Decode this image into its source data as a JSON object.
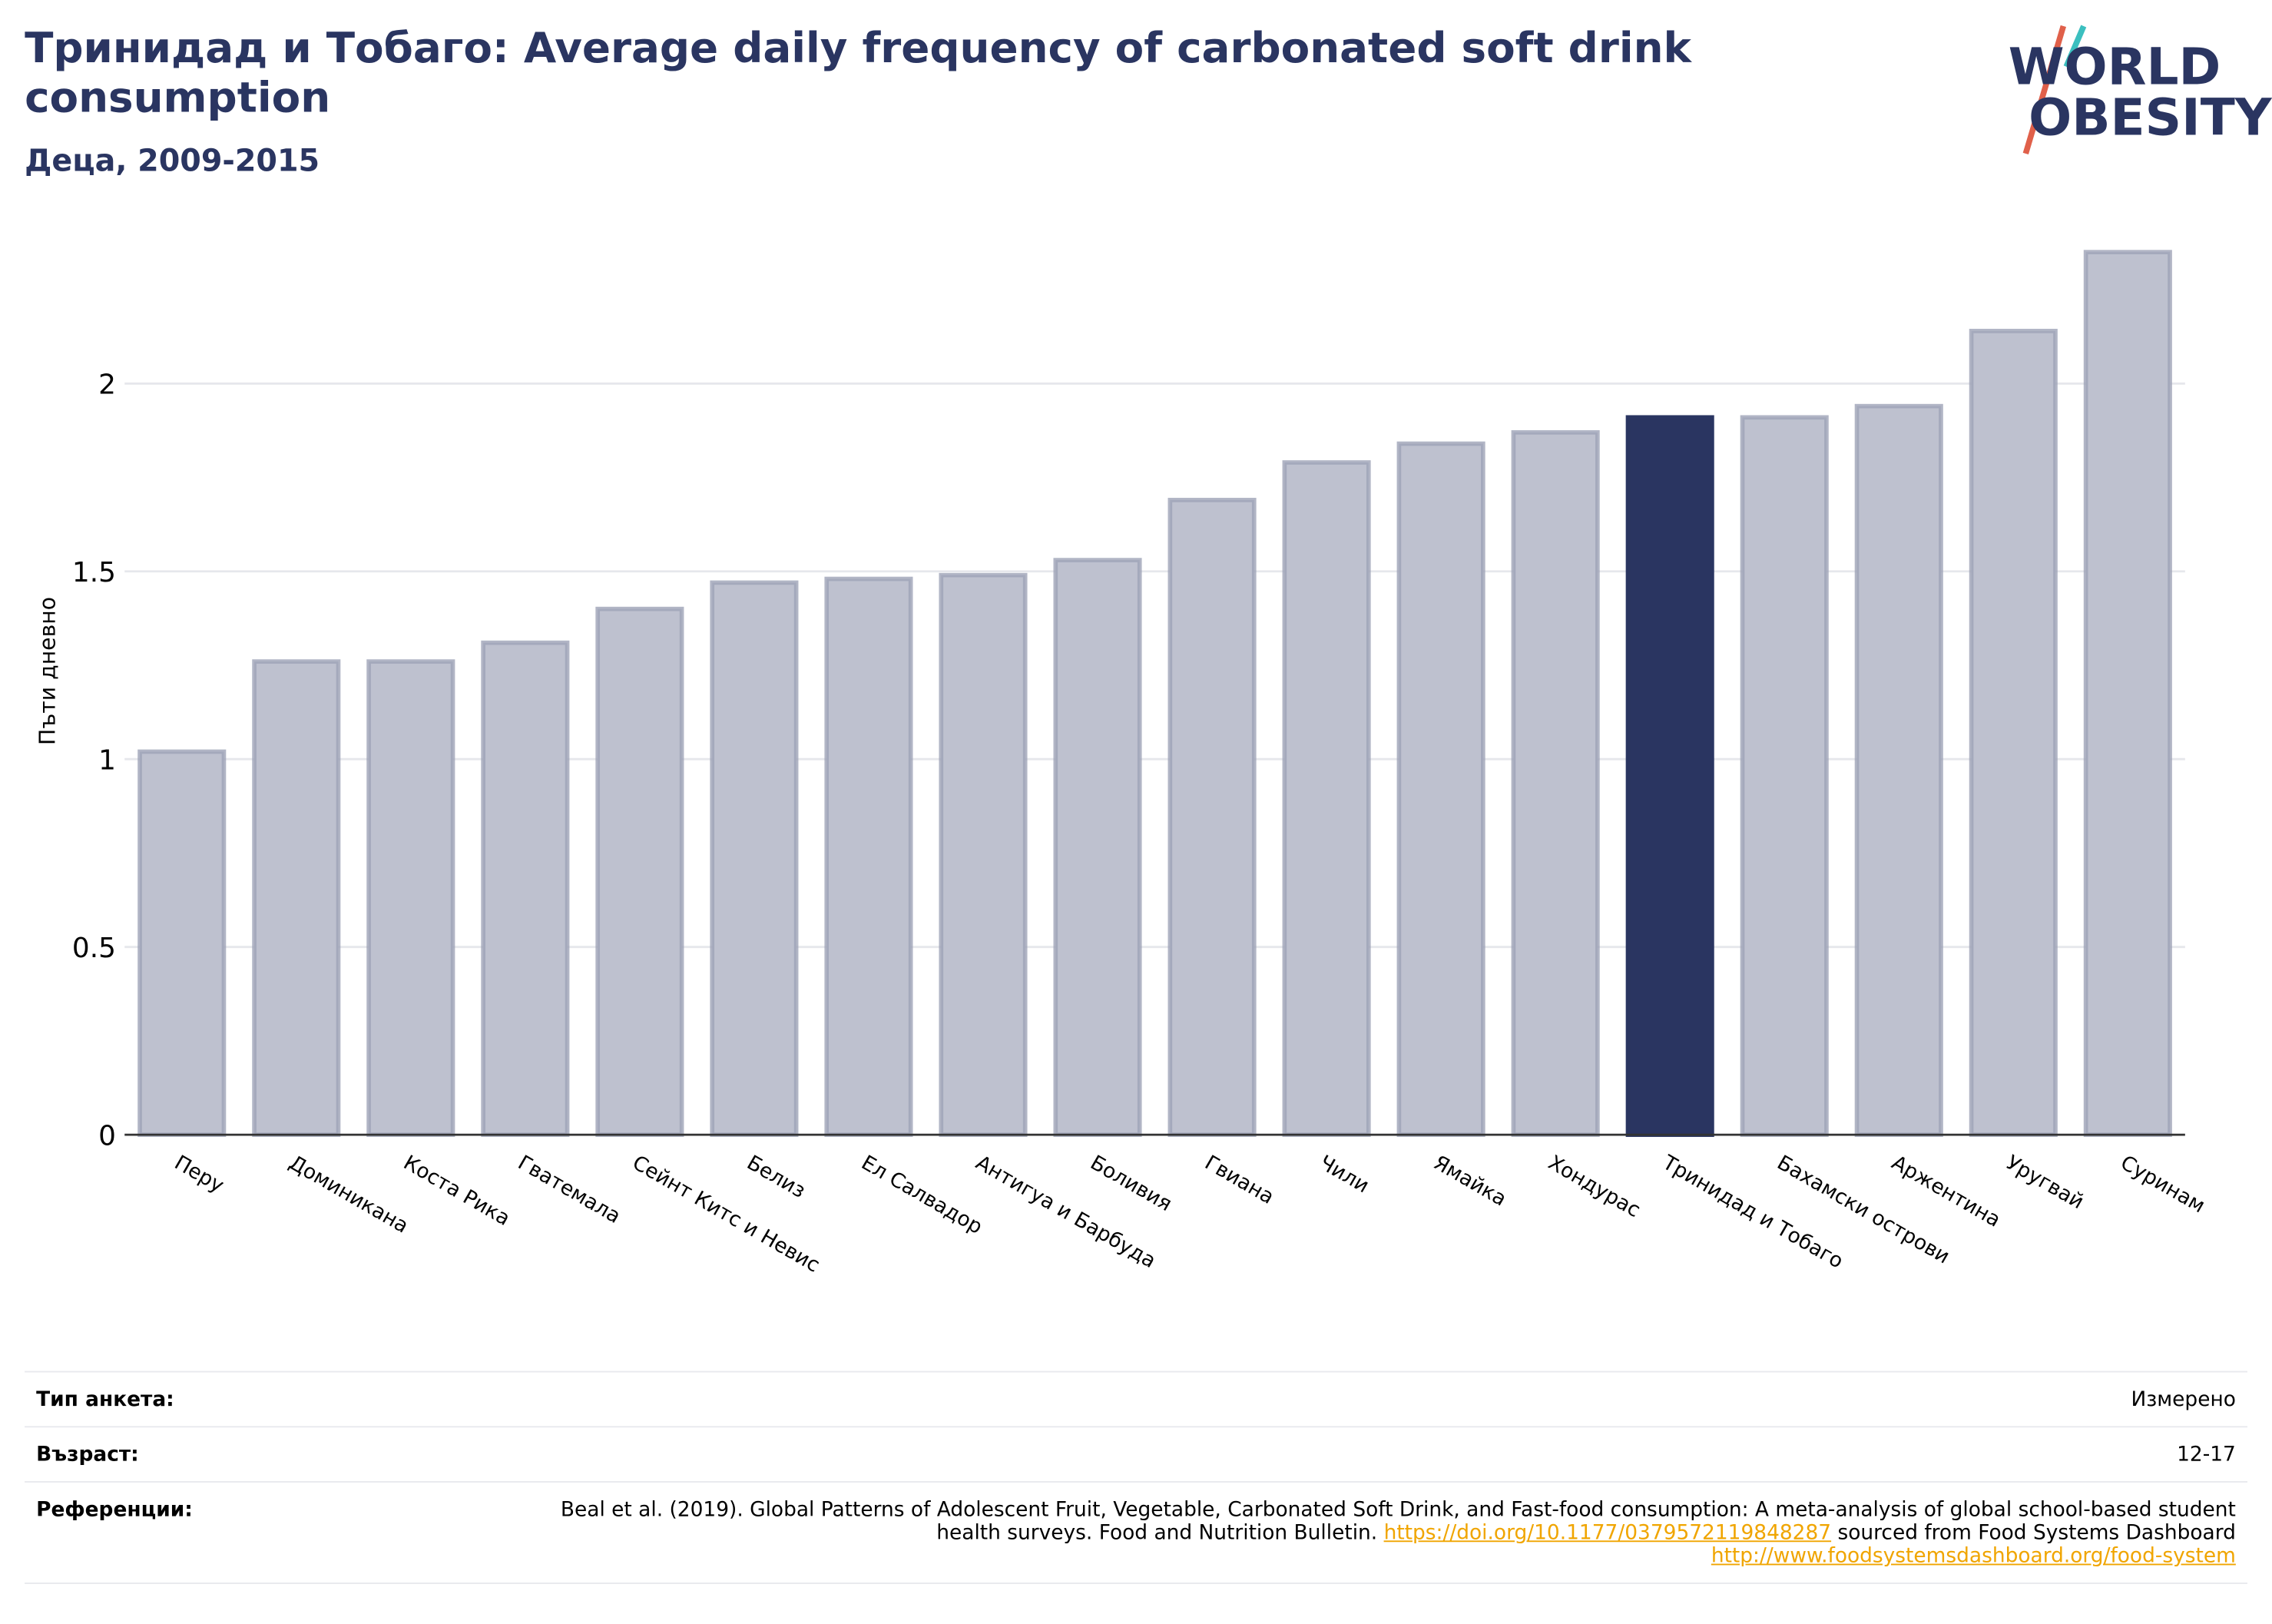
{
  "chart_data": {
    "type": "bar",
    "title": "Тринидад и Тобаго: Average daily frequency of carbonated soft drink consumption",
    "subtitle": "Деца, 2009-2015",
    "y_label": "Пъти дневно",
    "categories": [
      "Перу",
      "Доминикана",
      "Коста Рика",
      "Гватемала",
      "Сейнт Китс и Невис",
      "Белиз",
      "Ел Салвадор",
      "Антигуа и Барбуда",
      "Боливия",
      "Гвиана",
      "Чили",
      "Ямайка",
      "Хондурас",
      "Тринидад и Тобаго",
      "Бахамски острови",
      "Аржентина",
      "Уругвай",
      "Суринам"
    ],
    "values": [
      1.02,
      1.26,
      1.26,
      1.31,
      1.4,
      1.47,
      1.48,
      1.49,
      1.53,
      1.69,
      1.79,
      1.84,
      1.87,
      1.91,
      1.91,
      1.94,
      2.14,
      2.35
    ],
    "colors": [
      "#bec1cf",
      "#bec1cf",
      "#bec1cf",
      "#bec1cf",
      "#bec1cf",
      "#bec1cf",
      "#bec1cf",
      "#bec1cf",
      "#bec1cf",
      "#bec1cf",
      "#bec1cf",
      "#bec1cf",
      "#bec1cf",
      "#2a3561",
      "#bec1cf",
      "#bec1cf",
      "#bec1cf",
      "#bec1cf"
    ],
    "ylim": [
      0,
      2.4
    ],
    "yticks": [
      0,
      0.5,
      1,
      1.5,
      2
    ],
    "grid": true
  },
  "logo": [
    "WORLD",
    "OBESITY"
  ],
  "info": [
    {
      "label": "Тип анкета:",
      "value": "Измерено"
    },
    {
      "label": "Възраст:",
      "value": "12-17"
    },
    {
      "label": "Референции:",
      "parts": [
        "Beal et al. (2019). Global Patterns of Adolescent Fruit, Vegetable, Carbonated Soft Drink, and Fast-food consumption: A meta-analysis of global school-based student health surveys. Food and Nutrition Bulletin. ",
        "https://doi.org/10.1177/0379572119848287",
        " sourced from Food Systems Dashboard ",
        "http://www.foodsystemsdashboard.org/food-system"
      ]
    }
  ]
}
